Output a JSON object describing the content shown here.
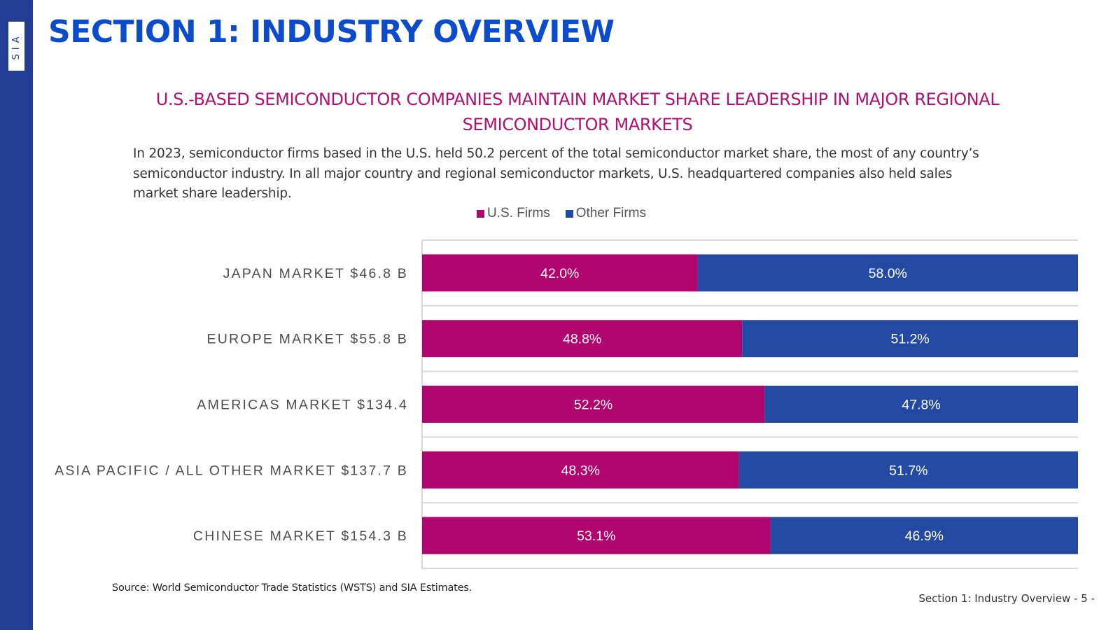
{
  "sidebar": {
    "logo_text": "SIA"
  },
  "section_title": "SECTION 1: INDUSTRY OVERVIEW",
  "headline_line1": "U.S.-BASED SEMICONDUCTOR COMPANIES MAINTAIN MARKET SHARE LEADERSHIP IN MAJOR REGIONAL",
  "headline_line2": "SEMICONDUCTOR MARKETS",
  "intro_text": "In 2023, semiconductor firms based in the U.S. held 50.2 percent of the total semiconductor market share, the most of any country’s semiconductor industry. In all major country and regional semiconductor markets, U.S. headquartered companies also held sales market share leadership.",
  "colors": {
    "sidebar": "#233f95",
    "title": "#0c4bc9",
    "headline": "#b0106f"
  },
  "chart_data": {
    "type": "bar",
    "orientation": "horizontal",
    "stacked": true,
    "categories": [
      "JAPAN MARKET $46.8 B",
      "EUROPE MARKET $55.8 B",
      "AMERICAS MARKET $134.4",
      "ASIA PACIFIC / ALL OTHER MARKET $137.7 B",
      "CHINESE MARKET $154.3 B"
    ],
    "series": [
      {
        "name": "U.S. Firms",
        "color": "#b0046e",
        "values": [
          42.0,
          48.8,
          52.2,
          48.3,
          53.1
        ],
        "labels": [
          "42.0%",
          "48.8%",
          "52.2%",
          "48.3%",
          "53.1%"
        ]
      },
      {
        "name": "Other Firms",
        "color": "#2349a2",
        "values": [
          58.0,
          51.2,
          47.8,
          51.7,
          46.9
        ],
        "labels": [
          "58.0%",
          "51.2%",
          "47.8%",
          "51.7%",
          "46.9%"
        ]
      }
    ],
    "xlim": [
      0,
      100
    ],
    "legend_position": "top",
    "grid": true
  },
  "source": "Source: World Semiconductor Trade Statistics (WSTS) and SIA Estimates.",
  "footer": "Section 1: Industry Overview - 5 -"
}
